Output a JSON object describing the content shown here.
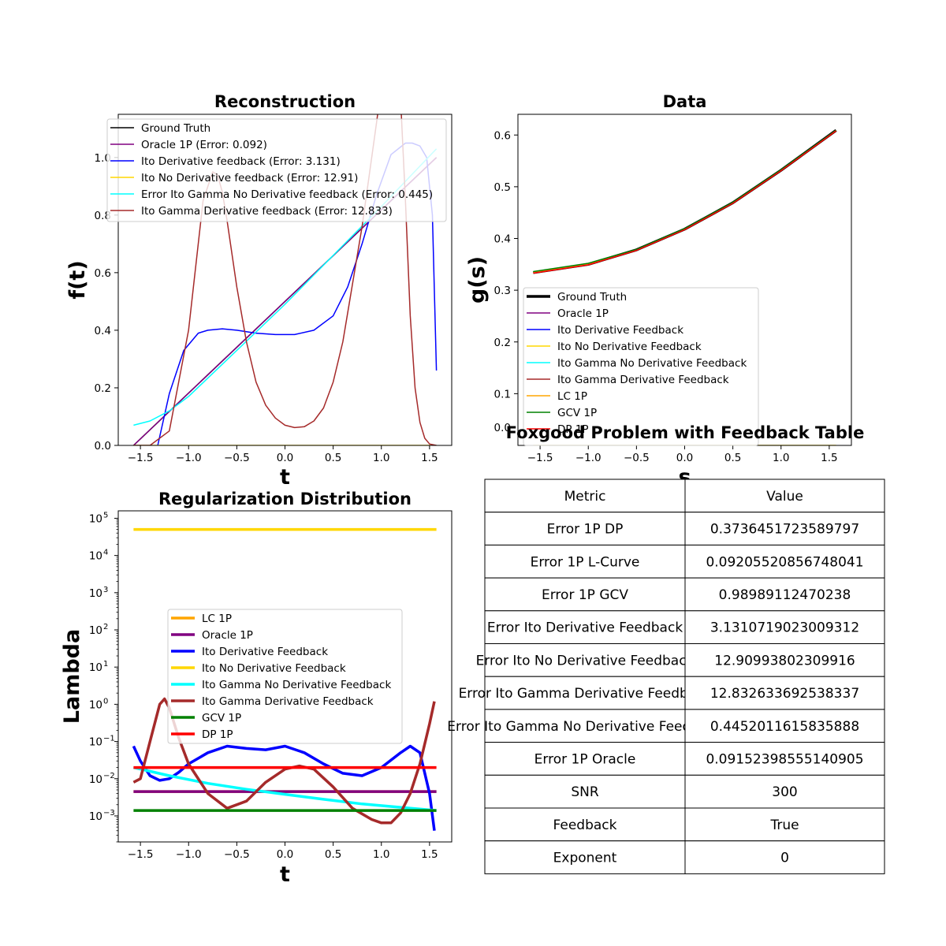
{
  "charts": [
    {
      "type": "line",
      "title": "Reconstruction",
      "xlabel": "t",
      "ylabel": "f(t)",
      "xlim": [
        -1.73,
        1.73
      ],
      "ylim": [
        0,
        1.15
      ],
      "xticks": [
        -1.5,
        -1.0,
        -0.5,
        0.0,
        0.5,
        1.0,
        1.5
      ],
      "yticks": [
        0.0,
        0.2,
        0.4,
        0.6,
        0.8,
        1.0
      ],
      "xtick_labels": [
        "−1.5",
        "−1.0",
        "−0.5",
        "0.0",
        "0.5",
        "1.0",
        "1.5"
      ],
      "ytick_labels": [
        "0.0",
        "0.2",
        "0.4",
        "0.6",
        "0.8",
        "1.0"
      ],
      "legend_position": "top",
      "series": [
        {
          "name": "Ground Truth",
          "color": "#000000",
          "width": 1.5,
          "x": [
            -1.571,
            1.571
          ],
          "y": [
            0.0,
            1.0
          ]
        },
        {
          "name": "Oracle 1P (Error: 0.092)",
          "color": "#800080",
          "width": 1.5,
          "x": [
            -1.571,
            1.571
          ],
          "y": [
            0.0,
            1.0
          ]
        },
        {
          "name": "Ito Derivative feedback (Error: 3.131)",
          "color": "#0000ff",
          "width": 1.5,
          "x": [
            -1.32,
            -1.2,
            -1.05,
            -0.9,
            -0.8,
            -0.65,
            -0.5,
            -0.3,
            -0.1,
            0.1,
            0.3,
            0.5,
            0.65,
            0.8,
            0.95,
            1.1,
            1.25,
            1.32,
            1.4,
            1.47,
            1.53,
            1.571
          ],
          "y": [
            0.0,
            0.18,
            0.33,
            0.39,
            0.4,
            0.405,
            0.4,
            0.39,
            0.385,
            0.385,
            0.4,
            0.45,
            0.55,
            0.7,
            0.87,
            1.01,
            1.05,
            1.05,
            1.04,
            1.0,
            0.8,
            0.26
          ]
        },
        {
          "name": "Ito No Derivative feedback (Error: 12.91)",
          "color": "#ffd700",
          "width": 1.5,
          "x": [
            -1.571,
            1.571
          ],
          "y": [
            0.0,
            0.0
          ]
        },
        {
          "name": "Error Ito Gamma No Derivative feedback (Error: 0.445)",
          "color": "#00ffff",
          "width": 1.5,
          "x": [
            -1.571,
            -1.4,
            -1.2,
            -1.0,
            -0.5,
            0.0,
            0.5,
            1.0,
            1.571
          ],
          "y": [
            0.07,
            0.085,
            0.12,
            0.17,
            0.33,
            0.49,
            0.66,
            0.83,
            1.03
          ]
        },
        {
          "name": "Ito Gamma Derivative feedback (Error: 12.833)",
          "color": "#a52a2a",
          "width": 1.5,
          "x": [
            -1.571,
            -1.4,
            -1.2,
            -1.0,
            -0.85,
            -0.75,
            -0.7,
            -0.65,
            -0.6,
            -0.5,
            -0.4,
            -0.3,
            -0.2,
            -0.1,
            0.0,
            0.1,
            0.2,
            0.3,
            0.4,
            0.5,
            0.6,
            0.7,
            0.8,
            0.9,
            0.95,
            1.0,
            1.05,
            1.15,
            1.2,
            1.25,
            1.3,
            1.35,
            1.4,
            1.45,
            1.5,
            1.571
          ],
          "y": [
            0.0,
            0.0,
            0.05,
            0.4,
            0.85,
            0.95,
            0.94,
            0.88,
            0.78,
            0.55,
            0.36,
            0.22,
            0.14,
            0.095,
            0.07,
            0.062,
            0.065,
            0.085,
            0.13,
            0.22,
            0.36,
            0.56,
            0.76,
            1.0,
            1.12,
            1.25,
            1.35,
            1.35,
            1.2,
            0.85,
            0.45,
            0.2,
            0.08,
            0.025,
            0.005,
            0.0
          ]
        }
      ]
    },
    {
      "type": "line",
      "title": "Data",
      "xlabel": "s",
      "ylabel": "g(s)",
      "xlim": [
        -1.73,
        1.73
      ],
      "ylim": [
        0.0,
        0.64
      ],
      "xticks": [
        -1.5,
        -1.0,
        -0.5,
        0.0,
        0.5,
        1.0,
        1.5
      ],
      "yticks": [
        0.1,
        0.2,
        0.3,
        0.4,
        0.5,
        0.6
      ],
      "xtick_labels": [
        "−1.5",
        "−1.0",
        "−0.5",
        "0.0",
        "0.5",
        "1.0",
        "1.5"
      ],
      "ytick_labels": [
        "0.1",
        "0.2",
        "0.3",
        "0.4",
        "0.5",
        "0.6"
      ],
      "extra_tick_label": "0.0",
      "legend_position": "lower left",
      "series": [
        {
          "name": "Ground Truth",
          "color": "#000000",
          "width": 3.5,
          "x": [
            -1.571,
            -1.0,
            -0.5,
            0.0,
            0.5,
            1.0,
            1.571
          ],
          "y": [
            0.334,
            0.35,
            0.378,
            0.418,
            0.469,
            0.532,
            0.609
          ]
        },
        {
          "name": "Oracle 1P",
          "color": "#800080",
          "width": 1.5,
          "x": [
            -1.571,
            -1.0,
            -0.5,
            0.0,
            0.5,
            1.0,
            1.571
          ],
          "y": [
            0.334,
            0.35,
            0.378,
            0.418,
            0.469,
            0.532,
            0.609
          ]
        },
        {
          "name": "Ito Derivative Feedback",
          "color": "#0000ff",
          "width": 1.5,
          "x": [
            -1.571,
            -1.0,
            -0.5,
            0.0,
            0.5,
            1.0,
            1.571
          ],
          "y": [
            0.334,
            0.35,
            0.378,
            0.418,
            0.469,
            0.532,
            0.609
          ]
        },
        {
          "name": "Ito No Derivative Feedback",
          "color": "#ffd700",
          "width": 1.5,
          "x": [
            -1.571,
            1.571
          ],
          "y": [
            0.0,
            0.0
          ]
        },
        {
          "name": "Ito Gamma No Derivative Feedback",
          "color": "#00ffff",
          "width": 1.5,
          "x": [
            -1.571,
            -1.0,
            -0.5,
            0.0,
            0.5,
            1.0,
            1.571
          ],
          "y": [
            0.334,
            0.35,
            0.378,
            0.418,
            0.469,
            0.532,
            0.609
          ]
        },
        {
          "name": "Ito Gamma Derivative Feedback",
          "color": "#a52a2a",
          "width": 1.5,
          "x": [
            -1.571,
            -1.0,
            -0.5,
            0.0,
            0.5,
            1.0,
            1.571
          ],
          "y": [
            0.334,
            0.35,
            0.378,
            0.418,
            0.469,
            0.532,
            0.609
          ]
        },
        {
          "name": "LC 1P",
          "color": "#ffa500",
          "width": 1.5,
          "x": [
            -1.571,
            -1.0,
            -0.5,
            0.0,
            0.5,
            1.0,
            1.571
          ],
          "y": [
            0.334,
            0.35,
            0.378,
            0.418,
            0.469,
            0.532,
            0.609
          ]
        },
        {
          "name": "GCV 1P",
          "color": "#008000",
          "width": 1.5,
          "x": [
            -1.571,
            -1.0,
            -0.5,
            0.0,
            0.5,
            1.0,
            1.571
          ],
          "y": [
            0.336,
            0.352,
            0.379,
            0.419,
            0.47,
            0.533,
            0.609
          ]
        },
        {
          "name": "DP 1P",
          "color": "#ff0000",
          "width": 1.5,
          "x": [
            -1.571,
            -1.0,
            -0.5,
            0.0,
            0.5,
            1.0,
            1.571
          ],
          "y": [
            0.333,
            0.349,
            0.377,
            0.417,
            0.468,
            0.531,
            0.608
          ]
        }
      ]
    },
    {
      "type": "line",
      "title": "Regularization Distribution",
      "xlabel": "t",
      "ylabel": "Lambda",
      "log_y": true,
      "xlim": [
        -1.73,
        1.73
      ],
      "ylim_log10": [
        -3.7,
        5.2
      ],
      "xticks": [
        -1.5,
        -1.0,
        -0.5,
        0.0,
        0.5,
        1.0,
        1.5
      ],
      "xtick_labels": [
        "−1.5",
        "−1.0",
        "−0.5",
        "0.0",
        "0.5",
        "1.0",
        "1.5"
      ],
      "ytick_exponents": [
        -3,
        -2,
        -1,
        0,
        1,
        2,
        3,
        4,
        5
      ],
      "ytick_labels": [
        "−3",
        "−2",
        "−1",
        "0",
        "1",
        "2",
        "3",
        "4",
        "5"
      ],
      "ytick_base": "10",
      "legend_position": "center",
      "series": [
        {
          "name": "LC 1P",
          "color": "#ffa500",
          "width": 3.5,
          "x": [
            -1.571,
            1.571
          ],
          "y": [
            0.0045,
            0.0045
          ]
        },
        {
          "name": "Oracle 1P",
          "color": "#800080",
          "width": 3.5,
          "x": [
            -1.571,
            1.571
          ],
          "y": [
            0.0045,
            0.0045
          ]
        },
        {
          "name": "Ito Derivative Feedback",
          "color": "#0000ff",
          "width": 3.5,
          "x": [
            -1.571,
            -1.5,
            -1.4,
            -1.3,
            -1.2,
            -1.1,
            -1.0,
            -0.8,
            -0.6,
            -0.4,
            -0.2,
            0.0,
            0.2,
            0.4,
            0.6,
            0.8,
            1.0,
            1.2,
            1.3,
            1.4,
            1.5,
            1.55
          ],
          "y": [
            0.075,
            0.03,
            0.012,
            0.009,
            0.01,
            0.015,
            0.025,
            0.05,
            0.075,
            0.065,
            0.06,
            0.075,
            0.05,
            0.025,
            0.014,
            0.012,
            0.02,
            0.05,
            0.075,
            0.05,
            0.004,
            0.0004
          ]
        },
        {
          "name": "Ito No Derivative Feedback",
          "color": "#ffd700",
          "width": 3.5,
          "x": [
            -1.571,
            1.571
          ],
          "y": [
            50000,
            50000
          ]
        },
        {
          "name": "Ito Gamma No Derivative Feedback",
          "color": "#00ffff",
          "width": 3.5,
          "x": [
            -1.571,
            -1.2,
            -0.8,
            -0.4,
            0.0,
            0.4,
            0.8,
            1.2,
            1.571
          ],
          "y": [
            0.02,
            0.012,
            0.0075,
            0.0052,
            0.0038,
            0.0028,
            0.0021,
            0.0017,
            0.0014
          ]
        },
        {
          "name": "Ito Gamma Derivative Feedback",
          "color": "#a52a2a",
          "width": 3.5,
          "x": [
            -1.571,
            -1.5,
            -1.4,
            -1.3,
            -1.25,
            -1.2,
            -1.1,
            -1.0,
            -0.8,
            -0.6,
            -0.4,
            -0.2,
            0.0,
            0.15,
            0.3,
            0.5,
            0.7,
            0.9,
            1.0,
            1.1,
            1.2,
            1.3,
            1.4,
            1.5,
            1.55
          ],
          "y": [
            0.008,
            0.01,
            0.1,
            1.0,
            1.4,
            0.8,
            0.12,
            0.025,
            0.004,
            0.0016,
            0.0025,
            0.008,
            0.018,
            0.022,
            0.018,
            0.006,
            0.0016,
            0.0008,
            0.00065,
            0.00065,
            0.0012,
            0.004,
            0.025,
            0.3,
            1.2
          ]
        },
        {
          "name": "GCV 1P",
          "color": "#008000",
          "width": 3.5,
          "x": [
            -1.571,
            1.571
          ],
          "y": [
            0.0014,
            0.0014
          ]
        },
        {
          "name": "DP 1P",
          "color": "#ff0000",
          "width": 3.5,
          "x": [
            -1.571,
            1.571
          ],
          "y": [
            0.02,
            0.02
          ]
        }
      ]
    }
  ],
  "table": {
    "title": "Foxgood Problem with Feedback Table",
    "header": [
      "Metric",
      "Value"
    ],
    "rows": [
      [
        "Error 1P DP",
        "0.3736451723589797"
      ],
      [
        "Error 1P L-Curve",
        "0.09205520856748041"
      ],
      [
        "Error 1P GCV",
        "0.98989112470238"
      ],
      [
        "Error Ito Derivative Feedback",
        "3.1310719023009312"
      ],
      [
        "Error Ito No Derivative Feedback",
        "12.90993802309916"
      ],
      [
        "Error Ito Gamma Derivative Feedback",
        "12.832633692538337"
      ],
      [
        "Error Ito Gamma No Derivative Feedback",
        "0.4452011615835888"
      ],
      [
        "Error 1P Oracle",
        "0.09152398555140905"
      ],
      [
        "SNR",
        "300"
      ],
      [
        "Feedback",
        "True"
      ],
      [
        "Exponent",
        "0"
      ]
    ]
  }
}
